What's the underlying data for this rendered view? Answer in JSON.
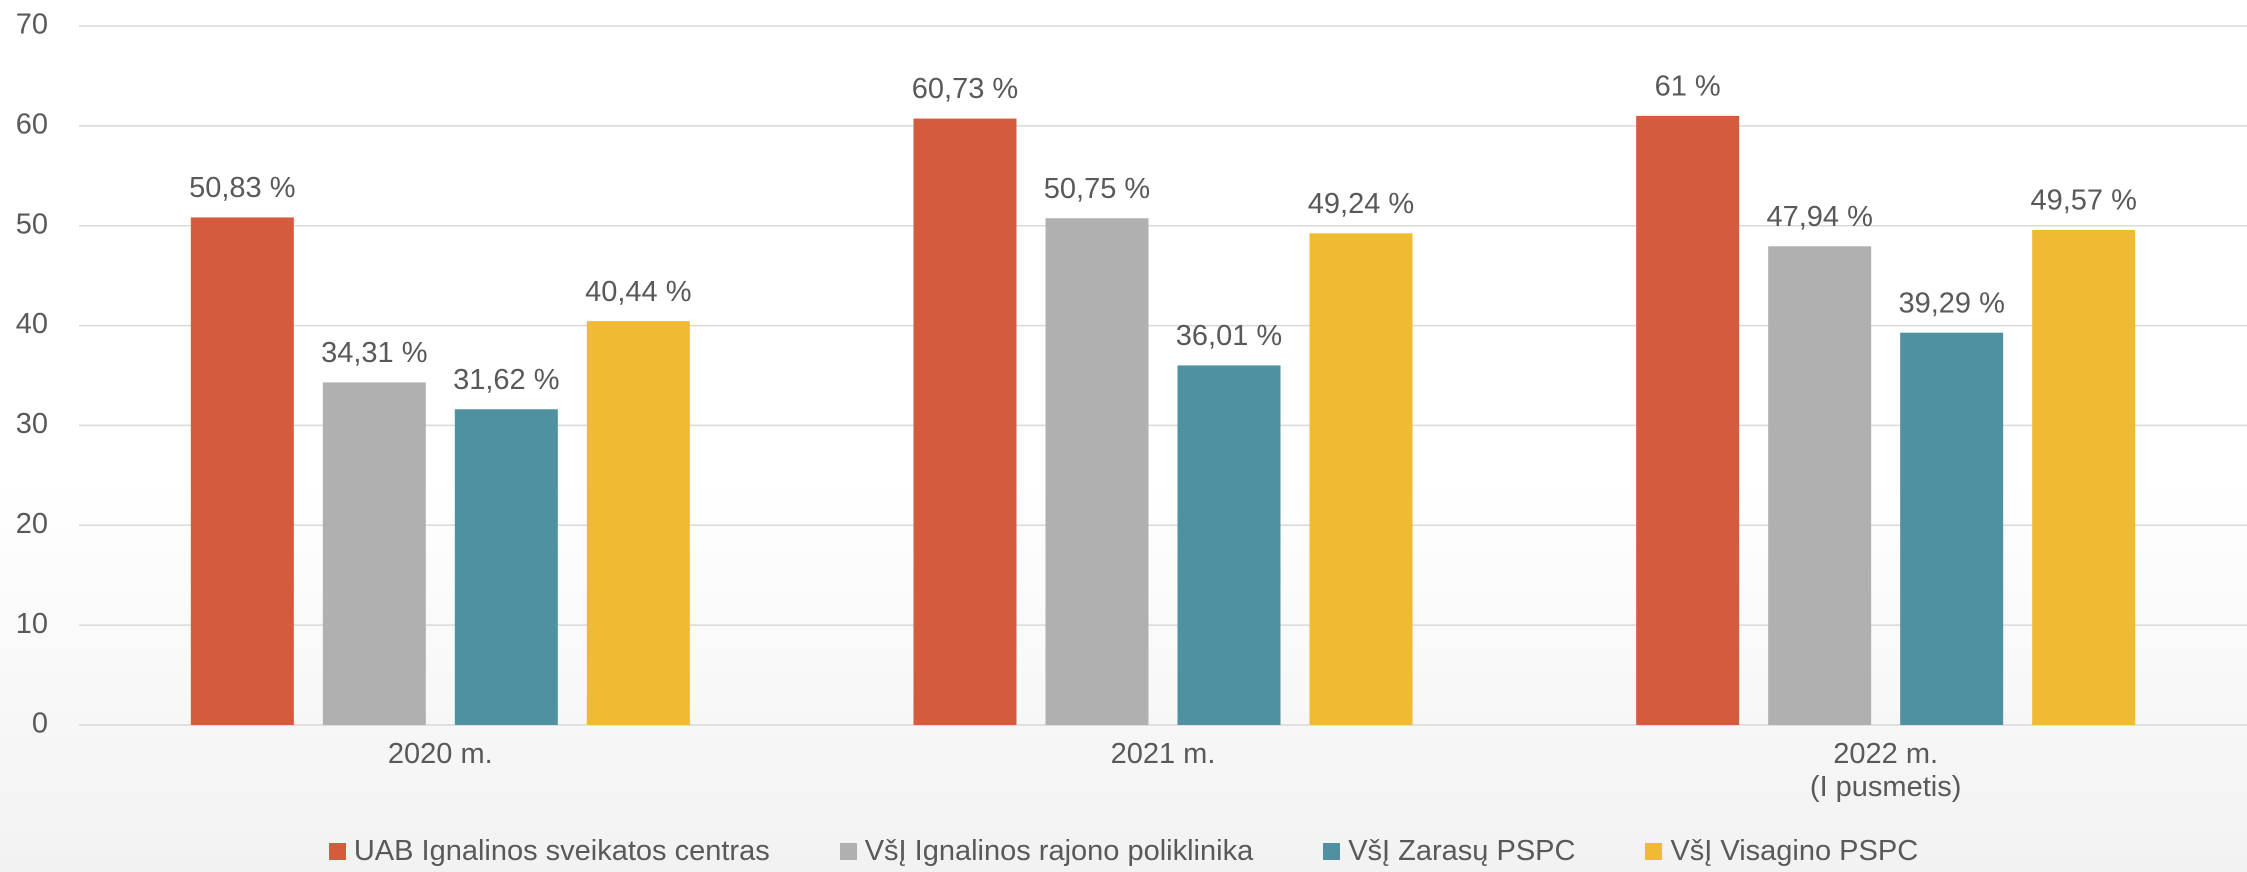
{
  "chart_data": {
    "type": "bar",
    "categories": [
      "2020 m.",
      "2021 m.",
      "2022 m.\n(I pusmetis)"
    ],
    "series": [
      {
        "name": "UAB Ignalinos sveikatos centras",
        "color": "#d35b3e",
        "values": [
          50.83,
          60.73,
          61
        ],
        "value_labels": [
          "50,83 %",
          "60,73 %",
          "61 %"
        ]
      },
      {
        "name": "VšĮ Ignalinos rajono poliklinika",
        "color": "#b0b0b0",
        "values": [
          34.31,
          50.75,
          47.94
        ],
        "value_labels": [
          "34,31 %",
          "50,75 %",
          "47,94 %"
        ]
      },
      {
        "name": "VšĮ Zarasų PSPC",
        "color": "#4f91a0",
        "values": [
          31.62,
          36.01,
          39.29
        ],
        "value_labels": [
          "31,62 %",
          "36,01 %",
          "39,29 %"
        ]
      },
      {
        "name": "VšĮ Visagino PSPC",
        "color": "#f0bb33",
        "values": [
          40.44,
          49.24,
          49.57
        ],
        "value_labels": [
          "40,44 %",
          "49,24 %",
          "49,57 %"
        ]
      }
    ],
    "ylim": [
      0,
      70
    ],
    "yticks": [
      0,
      10,
      20,
      30,
      40,
      50,
      60,
      70
    ],
    "grid": true,
    "legend": "bottom"
  }
}
